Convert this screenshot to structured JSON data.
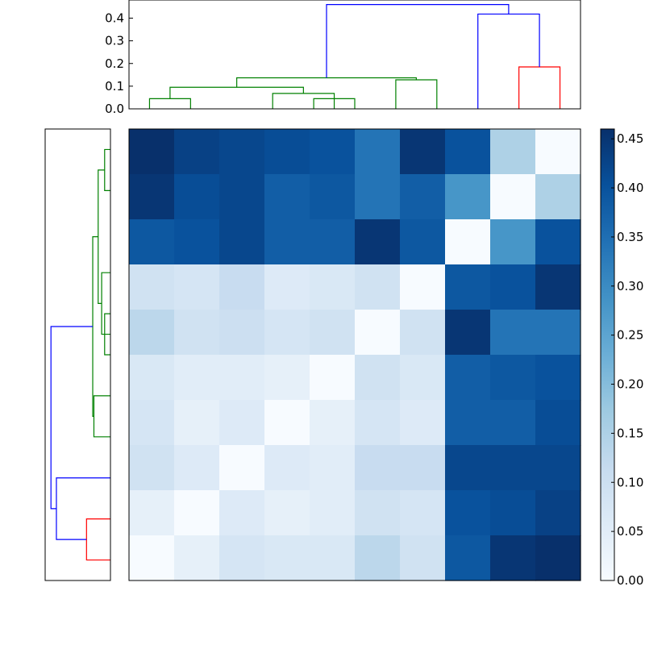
{
  "chart_data": [
    {
      "type": "dendrogram",
      "orientation": "top",
      "ylim": [
        0,
        0.48
      ],
      "yticks": [
        "0.0",
        "0.1",
        "0.2",
        "0.3",
        "0.4"
      ],
      "ytick_values": [
        0,
        0.1,
        0.2,
        0.3,
        0.4
      ],
      "leaf_count": 10,
      "colors": {
        "green": "#008000",
        "red": "#ff0000",
        "blue": "#0000ff"
      },
      "links": [
        {
          "x": [
            1,
            1,
            2,
            2
          ],
          "y": [
            0,
            0.045,
            0.045,
            0
          ],
          "color": "green"
        },
        {
          "x": [
            5,
            5,
            6,
            6
          ],
          "y": [
            0,
            0.045,
            0.045,
            0
          ],
          "color": "green"
        },
        {
          "x": [
            4,
            4,
            5.5,
            5.5
          ],
          "y": [
            0,
            0.068,
            0.068,
            0
          ],
          "color": "green"
        },
        {
          "x": [
            1.5,
            1.5,
            4.75,
            4.75
          ],
          "y": [
            0.045,
            0.095,
            0.095,
            0.068
          ],
          "color": "green"
        },
        {
          "x": [
            7,
            7,
            8,
            8
          ],
          "y": [
            0,
            0.128,
            0.128,
            0
          ],
          "color": "green"
        },
        {
          "x": [
            3.125,
            3.125,
            7.5,
            7.5
          ],
          "y": [
            0.095,
            0.137,
            0.137,
            0.128
          ],
          "color": "green"
        },
        {
          "x": [
            10,
            10,
            11,
            11
          ],
          "y": [
            0,
            0.185,
            0.185,
            0
          ],
          "color": "red"
        },
        {
          "x": [
            9,
            9,
            10.5,
            10.5
          ],
          "y": [
            0,
            0.418,
            0.418,
            0.185
          ],
          "color": "blue"
        },
        {
          "x": [
            5.3125,
            5.3125,
            9.75,
            9.75
          ],
          "y": [
            0.137,
            0.46,
            0.46,
            0.418
          ],
          "color": "blue"
        }
      ]
    },
    {
      "type": "dendrogram",
      "orientation": "left",
      "leaf_count": 10,
      "colors": {
        "green": "#008000",
        "red": "#ff0000",
        "blue": "#0000ff"
      },
      "links": [
        {
          "x": [
            1,
            1,
            2,
            2
          ],
          "y": [
            0,
            0.045,
            0.045,
            0
          ],
          "color": "green"
        },
        {
          "x": [
            5,
            5,
            6,
            6
          ],
          "y": [
            0,
            0.045,
            0.045,
            0
          ],
          "color": "green"
        },
        {
          "x": [
            4,
            4,
            5.5,
            5.5
          ],
          "y": [
            0,
            0.068,
            0.068,
            0
          ],
          "color": "green"
        },
        {
          "x": [
            1.5,
            1.5,
            4.75,
            4.75
          ],
          "y": [
            0.045,
            0.095,
            0.095,
            0.068
          ],
          "color": "green"
        },
        {
          "x": [
            7,
            7,
            8,
            8
          ],
          "y": [
            0,
            0.128,
            0.128,
            0
          ],
          "color": "green"
        },
        {
          "x": [
            3.125,
            3.125,
            7.5,
            7.5
          ],
          "y": [
            0.095,
            0.137,
            0.137,
            0.128
          ],
          "color": "green"
        },
        {
          "x": [
            10,
            10,
            11,
            11
          ],
          "y": [
            0,
            0.185,
            0.185,
            0
          ],
          "color": "red"
        },
        {
          "x": [
            9,
            9,
            10.5,
            10.5
          ],
          "y": [
            0,
            0.418,
            0.418,
            0.185
          ],
          "color": "blue"
        },
        {
          "x": [
            5.3125,
            5.3125,
            9.75,
            9.75
          ],
          "y": [
            0.137,
            0.46,
            0.46,
            0.418
          ],
          "color": "blue"
        }
      ]
    },
    {
      "type": "heatmap",
      "rows": 10,
      "cols": 10,
      "colormap": "Blues",
      "vmin": 0,
      "vmax": 0.46,
      "values": [
        [
          0.46,
          0.43,
          0.42,
          0.41,
          0.4,
          0.34,
          0.45,
          0.4,
          0.15,
          0.0
        ],
        [
          0.45,
          0.41,
          0.42,
          0.38,
          0.39,
          0.34,
          0.38,
          0.28,
          0.0,
          0.15
        ],
        [
          0.39,
          0.4,
          0.42,
          0.38,
          0.38,
          0.45,
          0.39,
          0.0,
          0.28,
          0.4
        ],
        [
          0.09,
          0.08,
          0.11,
          0.06,
          0.07,
          0.09,
          0.0,
          0.39,
          0.4,
          0.45
        ],
        [
          0.13,
          0.09,
          0.1,
          0.08,
          0.09,
          0.0,
          0.09,
          0.45,
          0.34,
          0.34
        ],
        [
          0.07,
          0.05,
          0.05,
          0.04,
          0.0,
          0.09,
          0.07,
          0.38,
          0.39,
          0.4
        ],
        [
          0.08,
          0.04,
          0.06,
          0.0,
          0.04,
          0.08,
          0.06,
          0.38,
          0.38,
          0.41
        ],
        [
          0.09,
          0.06,
          0.0,
          0.06,
          0.05,
          0.11,
          0.11,
          0.42,
          0.42,
          0.42
        ],
        [
          0.04,
          0.0,
          0.06,
          0.04,
          0.05,
          0.09,
          0.08,
          0.4,
          0.41,
          0.43
        ],
        [
          0.0,
          0.04,
          0.08,
          0.07,
          0.07,
          0.13,
          0.09,
          0.39,
          0.45,
          0.46
        ]
      ]
    },
    {
      "type": "colorbar",
      "colormap": "Blues",
      "vmin": 0,
      "vmax": 0.46,
      "ticks": [
        "0.00",
        "0.05",
        "0.10",
        "0.15",
        "0.20",
        "0.25",
        "0.30",
        "0.35",
        "0.40",
        "0.45"
      ],
      "tick_values": [
        0,
        0.05,
        0.1,
        0.15,
        0.2,
        0.25,
        0.3,
        0.35,
        0.4,
        0.45
      ]
    }
  ]
}
